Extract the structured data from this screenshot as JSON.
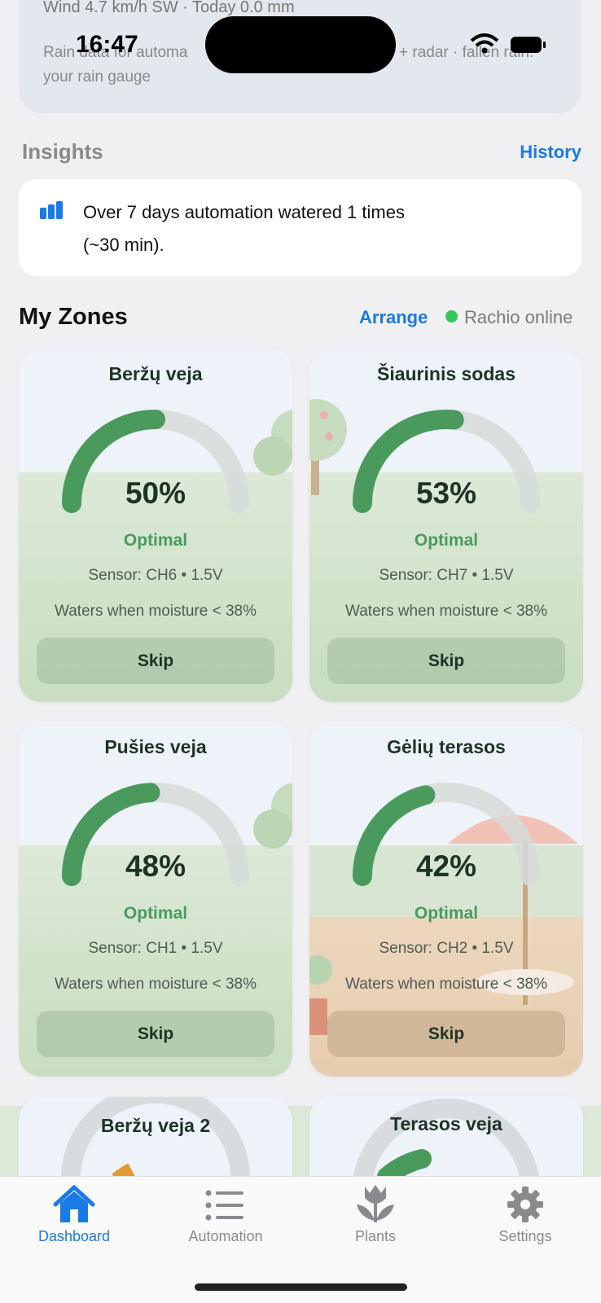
{
  "status_bar": {
    "time": "16:47"
  },
  "weather": {
    "wind": "Wind 4.7 km/h SW · Today 0.0 mm",
    "rain_note_start": "Rain data for automa",
    "rain_note_end": "+ radar · fallen rain:",
    "rain_note_line2": "your rain gauge"
  },
  "insights": {
    "title": "Insights",
    "history_link": "History",
    "message_line1": "Over 7 days automation watered 1 times",
    "message_line2": "(~30 min)."
  },
  "zones_section": {
    "title": "My Zones",
    "arrange_link": "Arrange",
    "status": "Rachio online"
  },
  "zones": [
    {
      "name": "Beržų veja",
      "moisture": 50,
      "moisture_label": "50%",
      "state": "Optimal",
      "sensor": "Sensor: CH6 • 1.5V",
      "threshold": "Waters when moisture < 38%",
      "button": "Skip"
    },
    {
      "name": "Šiaurinis sodas",
      "moisture": 53,
      "moisture_label": "53%",
      "state": "Optimal",
      "sensor": "Sensor: CH7 • 1.5V",
      "threshold": "Waters when moisture < 38%",
      "button": "Skip"
    },
    {
      "name": "Pušies veja",
      "moisture": 48,
      "moisture_label": "48%",
      "state": "Optimal",
      "sensor": "Sensor: CH1 • 1.5V",
      "threshold": "Waters when moisture < 38%",
      "button": "Skip"
    },
    {
      "name": "Gėlių terasos",
      "moisture": 42,
      "moisture_label": "42%",
      "state": "Optimal",
      "sensor": "Sensor: CH2 • 1.5V",
      "threshold": "Waters when moisture < 38%",
      "button": "Skip"
    },
    {
      "name": "Beržų veja 2"
    },
    {
      "name": "Terasos veja"
    }
  ],
  "tab_bar": {
    "items": [
      {
        "label": "Dashboard"
      },
      {
        "label": "Automation"
      },
      {
        "label": "Plants"
      },
      {
        "label": "Settings"
      }
    ]
  }
}
